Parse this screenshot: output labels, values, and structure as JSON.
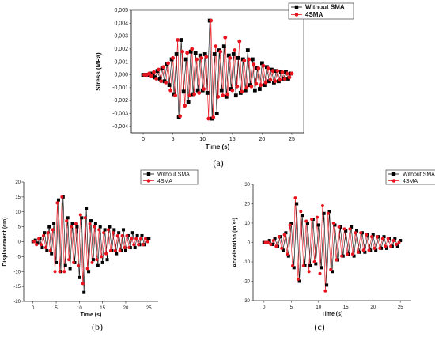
{
  "chart_data": [
    {
      "id": "a",
      "type": "line",
      "caption": "(a)",
      "xlabel": "Time (s)",
      "ylabel": "Stress (MPa)",
      "xlim": [
        -2,
        27
      ],
      "ylim": [
        -0.0045,
        0.005
      ],
      "xticks": [
        0,
        5,
        10,
        15,
        20,
        25
      ],
      "yticks": [
        -0.004,
        -0.003,
        -0.002,
        -0.001,
        0.0,
        0.001,
        0.002,
        0.003,
        0.004,
        0.005
      ],
      "ytick_labels": [
        "-0,004",
        "-0,003",
        "-0,002",
        "-0,001",
        "0,000",
        "0,001",
        "0,002",
        "0,003",
        "0,004",
        "0,005"
      ],
      "legend_position": "top-right",
      "series": [
        {
          "name": "Without SMA",
          "color": "#000000",
          "marker": "square",
          "x": [
            0.0,
            0.4,
            0.8,
            1.2,
            1.6,
            2.0,
            2.4,
            2.8,
            3.2,
            3.6,
            4.0,
            4.4,
            4.8,
            5.2,
            5.6,
            6.0,
            6.4,
            6.8,
            7.2,
            7.6,
            8.0,
            8.4,
            8.8,
            9.2,
            9.6,
            10.0,
            10.4,
            10.8,
            11.2,
            11.6,
            12.0,
            12.4,
            12.8,
            13.2,
            13.6,
            14.0,
            14.4,
            14.8,
            15.2,
            15.6,
            16.0,
            16.4,
            16.8,
            17.2,
            17.6,
            18.0,
            18.4,
            18.8,
            19.2,
            19.6,
            20.0,
            20.4,
            20.8,
            21.2,
            21.6,
            22.0,
            22.4,
            22.8,
            23.2,
            23.6,
            24.0,
            24.4,
            24.8
          ],
          "y": [
            0.0,
            0.0,
            0.0,
            0.0001,
            0.0,
            -0.0002,
            0.0003,
            -0.0003,
            0.0005,
            -0.0005,
            0.0008,
            -0.0008,
            0.0012,
            -0.0015,
            0.0016,
            -0.0033,
            0.0027,
            -0.0013,
            0.0012,
            -0.0021,
            0.0018,
            -0.0015,
            0.0017,
            -0.0012,
            0.0015,
            -0.0012,
            0.0016,
            -0.0014,
            0.0042,
            -0.0034,
            0.0016,
            -0.003,
            0.0019,
            -0.0012,
            0.0022,
            -0.0017,
            0.0015,
            -0.0011,
            0.0016,
            -0.0016,
            0.0013,
            -0.0014,
            0.0012,
            -0.0012,
            0.0019,
            -0.0008,
            0.0012,
            -0.0012,
            0.0005,
            -0.0011,
            0.0009,
            -0.0008,
            0.0006,
            -0.0005,
            0.0004,
            -0.0006,
            0.0003,
            -0.0005,
            0.0002,
            -0.0003,
            0.0002,
            -0.0003,
            0.0001
          ]
        },
        {
          "name": "4SMA",
          "color": "#e8141e",
          "marker": "circle",
          "x": [
            0.2,
            0.6,
            1.0,
            1.4,
            1.8,
            2.2,
            2.6,
            3.0,
            3.4,
            3.8,
            4.2,
            4.6,
            5.0,
            5.4,
            5.8,
            6.2,
            6.6,
            7.0,
            7.4,
            7.8,
            8.2,
            8.6,
            9.0,
            9.4,
            9.8,
            10.2,
            10.6,
            11.0,
            11.4,
            11.8,
            12.2,
            12.6,
            13.0,
            13.4,
            13.8,
            14.2,
            14.6,
            15.0,
            15.4,
            15.8,
            16.2,
            16.6,
            17.0,
            17.4,
            17.8,
            18.2,
            18.6,
            19.0,
            19.4,
            19.8,
            20.2,
            20.6,
            21.0,
            21.4,
            21.8,
            22.2,
            22.6,
            23.0,
            23.4,
            23.8,
            24.2,
            24.6,
            25.0
          ],
          "y": [
            0.0,
            0.0,
            0.0001,
            -0.0001,
            0.0002,
            -0.0003,
            0.0004,
            -0.0005,
            0.0006,
            -0.0006,
            0.0009,
            -0.0012,
            0.0013,
            -0.0016,
            0.0027,
            -0.0032,
            0.0018,
            -0.0024,
            0.0017,
            -0.0016,
            0.002,
            -0.0015,
            0.0012,
            -0.0014,
            0.0013,
            -0.0011,
            0.0014,
            -0.0034,
            0.0042,
            -0.0033,
            0.0022,
            -0.0017,
            0.0018,
            -0.0016,
            0.0029,
            -0.0015,
            0.0013,
            -0.0012,
            0.0019,
            -0.0009,
            0.0026,
            -0.0013,
            0.0011,
            -0.001,
            0.0012,
            -0.0009,
            0.0008,
            -0.0007,
            0.0005,
            -0.0008,
            0.0007,
            -0.0006,
            0.0005,
            -0.0004,
            0.0003,
            -0.0005,
            0.0003,
            -0.0004,
            0.0002,
            -0.0003,
            0.0001,
            -0.0002,
            0.0001
          ]
        }
      ]
    },
    {
      "id": "b",
      "type": "line",
      "caption": "(b)",
      "xlabel": "Time (s)",
      "ylabel": "Displacement (cm)",
      "xlim": [
        -2,
        27
      ],
      "ylim": [
        -20,
        20
      ],
      "xticks": [
        0,
        5,
        10,
        15,
        20,
        25
      ],
      "yticks": [
        -20,
        -15,
        -10,
        -5,
        0,
        5,
        10,
        15,
        20
      ],
      "ytick_labels": [
        "-20",
        "-15",
        "-10",
        "-5",
        "0",
        "5",
        "10",
        "15",
        "20"
      ],
      "legend_position": "top-right",
      "series": [
        {
          "name": "Without SMA",
          "color": "#000000",
          "marker": "square",
          "x": [
            0.0,
            0.5,
            1.0,
            1.5,
            2.0,
            2.5,
            3.0,
            3.5,
            4.0,
            4.5,
            5.0,
            5.5,
            6.0,
            6.5,
            7.0,
            7.5,
            8.0,
            8.5,
            9.0,
            9.5,
            10.0,
            10.5,
            11.0,
            11.5,
            12.0,
            12.5,
            13.0,
            13.5,
            14.0,
            14.5,
            15.0,
            15.5,
            16.0,
            16.5,
            17.0,
            17.5,
            18.0,
            18.5,
            19.0,
            19.5,
            20.0,
            20.5,
            21.0,
            21.5,
            22.0,
            22.5,
            23.0,
            23.5,
            24.0,
            24.5,
            25.0
          ],
          "y": [
            0,
            0.5,
            -0.5,
            1,
            -2,
            3,
            -3,
            5,
            -4,
            6,
            -7,
            14,
            -10,
            15,
            -8,
            8,
            -9,
            6,
            -7,
            5,
            -12,
            8,
            -17,
            11,
            -10,
            7,
            -6,
            6,
            -8,
            5,
            -7,
            4,
            -6,
            5,
            -3,
            4,
            -4,
            3,
            -3,
            4,
            -3,
            2,
            -2,
            3,
            -2,
            2,
            -1,
            2,
            -1,
            1,
            1
          ]
        },
        {
          "name": "4SMA",
          "color": "#e8141e",
          "marker": "circle",
          "x": [
            0.25,
            0.75,
            1.25,
            1.75,
            2.25,
            2.75,
            3.25,
            3.75,
            4.25,
            4.75,
            5.25,
            5.75,
            6.25,
            6.75,
            7.25,
            7.75,
            8.25,
            8.75,
            9.25,
            9.75,
            10.25,
            10.75,
            11.25,
            11.75,
            12.25,
            12.75,
            13.25,
            13.75,
            14.25,
            14.75,
            15.25,
            15.75,
            16.25,
            16.75,
            17.25,
            17.75,
            18.25,
            18.75,
            19.25,
            19.75,
            20.25,
            20.75,
            21.25,
            21.75,
            22.25,
            22.75,
            23.25,
            23.75,
            24.25,
            24.75
          ],
          "y": [
            0,
            -1,
            1,
            -1,
            2,
            -2,
            3,
            -3,
            4,
            -10,
            13,
            -10,
            15,
            -10,
            7,
            -6,
            5,
            -7,
            6,
            -8,
            9,
            -14,
            8,
            -9,
            6,
            -7,
            5,
            -6,
            4,
            -5,
            3,
            -4,
            4,
            -3,
            3,
            -3,
            2,
            -3,
            2,
            -2,
            2,
            -2,
            1,
            -1,
            1,
            -1,
            1,
            -1,
            1,
            0
          ]
        }
      ]
    },
    {
      "id": "c",
      "type": "line",
      "caption": "(c)",
      "xlabel": "Time (s)",
      "ylabel": "Acceleration (m/s²)",
      "xlim": [
        -2,
        27
      ],
      "ylim": [
        -30,
        30
      ],
      "xticks": [
        0,
        5,
        10,
        15,
        20,
        25
      ],
      "yticks": [
        -30,
        -20,
        -10,
        0,
        10,
        20,
        30
      ],
      "ytick_labels": [
        "-30",
        "-20",
        "-10",
        "0",
        "10",
        "20",
        "30"
      ],
      "legend_position": "top-right",
      "series": [
        {
          "name": "Without SMA",
          "color": "#000000",
          "marker": "square",
          "x": [
            0.0,
            0.5,
            1.0,
            1.5,
            2.0,
            2.5,
            3.0,
            3.5,
            4.0,
            4.5,
            5.0,
            5.5,
            6.0,
            6.5,
            7.0,
            7.5,
            8.0,
            8.5,
            9.0,
            9.5,
            10.0,
            10.5,
            11.0,
            11.5,
            12.0,
            12.5,
            13.0,
            13.5,
            14.0,
            14.5,
            15.0,
            15.5,
            16.0,
            16.5,
            17.0,
            17.5,
            18.0,
            18.5,
            19.0,
            19.5,
            20.0,
            20.5,
            21.0,
            21.5,
            22.0,
            22.5,
            23.0,
            23.5,
            24.0,
            24.5,
            25.0
          ],
          "y": [
            0,
            0,
            1,
            -1,
            2,
            -2,
            3,
            -4,
            5,
            -7,
            10,
            -13,
            20,
            -20,
            14,
            -12,
            10,
            -12,
            12,
            -11,
            9,
            -13,
            15,
            -22,
            16,
            -15,
            9,
            -9,
            8,
            -7,
            6,
            -6,
            8,
            -7,
            6,
            -5,
            5,
            -5,
            4,
            -4,
            4,
            -4,
            3,
            -3,
            3,
            -3,
            2,
            -2,
            2,
            -2,
            1
          ]
        },
        {
          "name": "4SMA",
          "color": "#e8141e",
          "marker": "circle",
          "x": [
            0.25,
            0.75,
            1.25,
            1.75,
            2.25,
            2.75,
            3.25,
            3.75,
            4.25,
            4.75,
            5.25,
            5.75,
            6.25,
            6.75,
            7.25,
            7.75,
            8.25,
            8.75,
            9.25,
            9.75,
            10.25,
            10.75,
            11.25,
            11.75,
            12.25,
            12.75,
            13.25,
            13.75,
            14.25,
            14.75,
            15.25,
            15.75,
            16.25,
            16.75,
            17.25,
            17.75,
            18.25,
            18.75,
            19.25,
            19.75,
            20.25,
            20.75,
            21.25,
            21.75,
            22.25,
            22.75,
            23.25,
            23.75,
            24.25,
            24.75
          ],
          "y": [
            0,
            0,
            -1,
            1,
            -2,
            3,
            -3,
            4,
            -6,
            9,
            -12,
            23,
            -19,
            16,
            -12,
            11,
            -15,
            12,
            -10,
            13,
            -16,
            19,
            -25,
            15,
            -14,
            10,
            -9,
            8,
            -7,
            7,
            -6,
            7,
            -6,
            5,
            -5,
            5,
            -4,
            4,
            -4,
            3,
            -3,
            3,
            -3,
            2,
            -2,
            2,
            -2,
            1,
            -1,
            0
          ]
        }
      ]
    }
  ]
}
